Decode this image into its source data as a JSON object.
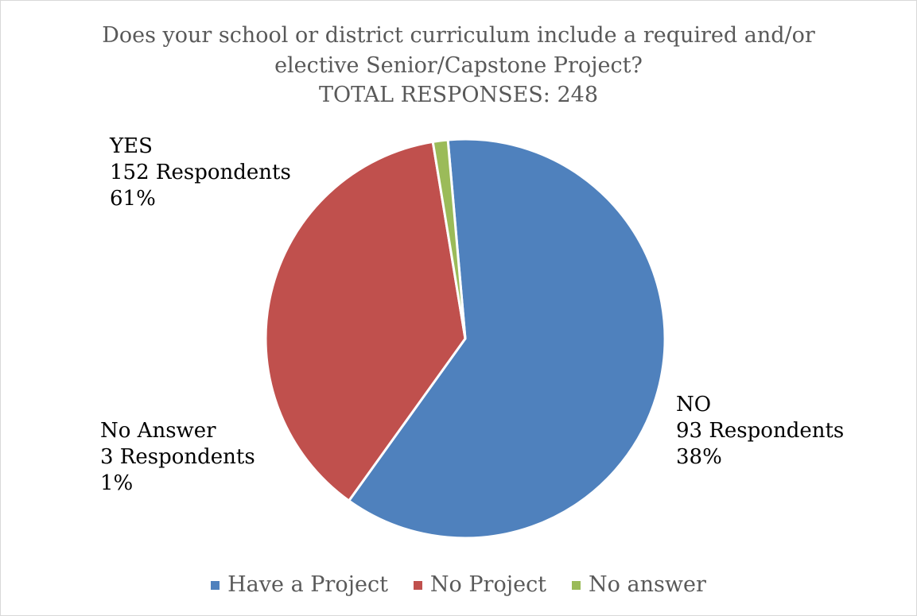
{
  "chart_data": {
    "type": "pie",
    "title_lines": [
      "Does your school or district curriculum include a required and/or",
      "elective Senior/Capstone Project?",
      "TOTAL RESPONSES:   248"
    ],
    "slices": [
      {
        "name": "Have a Project",
        "value": 152,
        "color": "#4f81bd",
        "label_lines": [
          "YES",
          "152 Respondents",
          "61%"
        ]
      },
      {
        "name": "No Project",
        "value": 93,
        "color": "#c0504d",
        "label_lines": [
          "NO",
          "93 Respondents",
          "38%"
        ]
      },
      {
        "name": "No answer",
        "value": 3,
        "color": "#9bbb59",
        "label_lines": [
          "No Answer",
          "3 Respondents",
          "1%"
        ]
      }
    ],
    "legend_position": "bottom"
  }
}
